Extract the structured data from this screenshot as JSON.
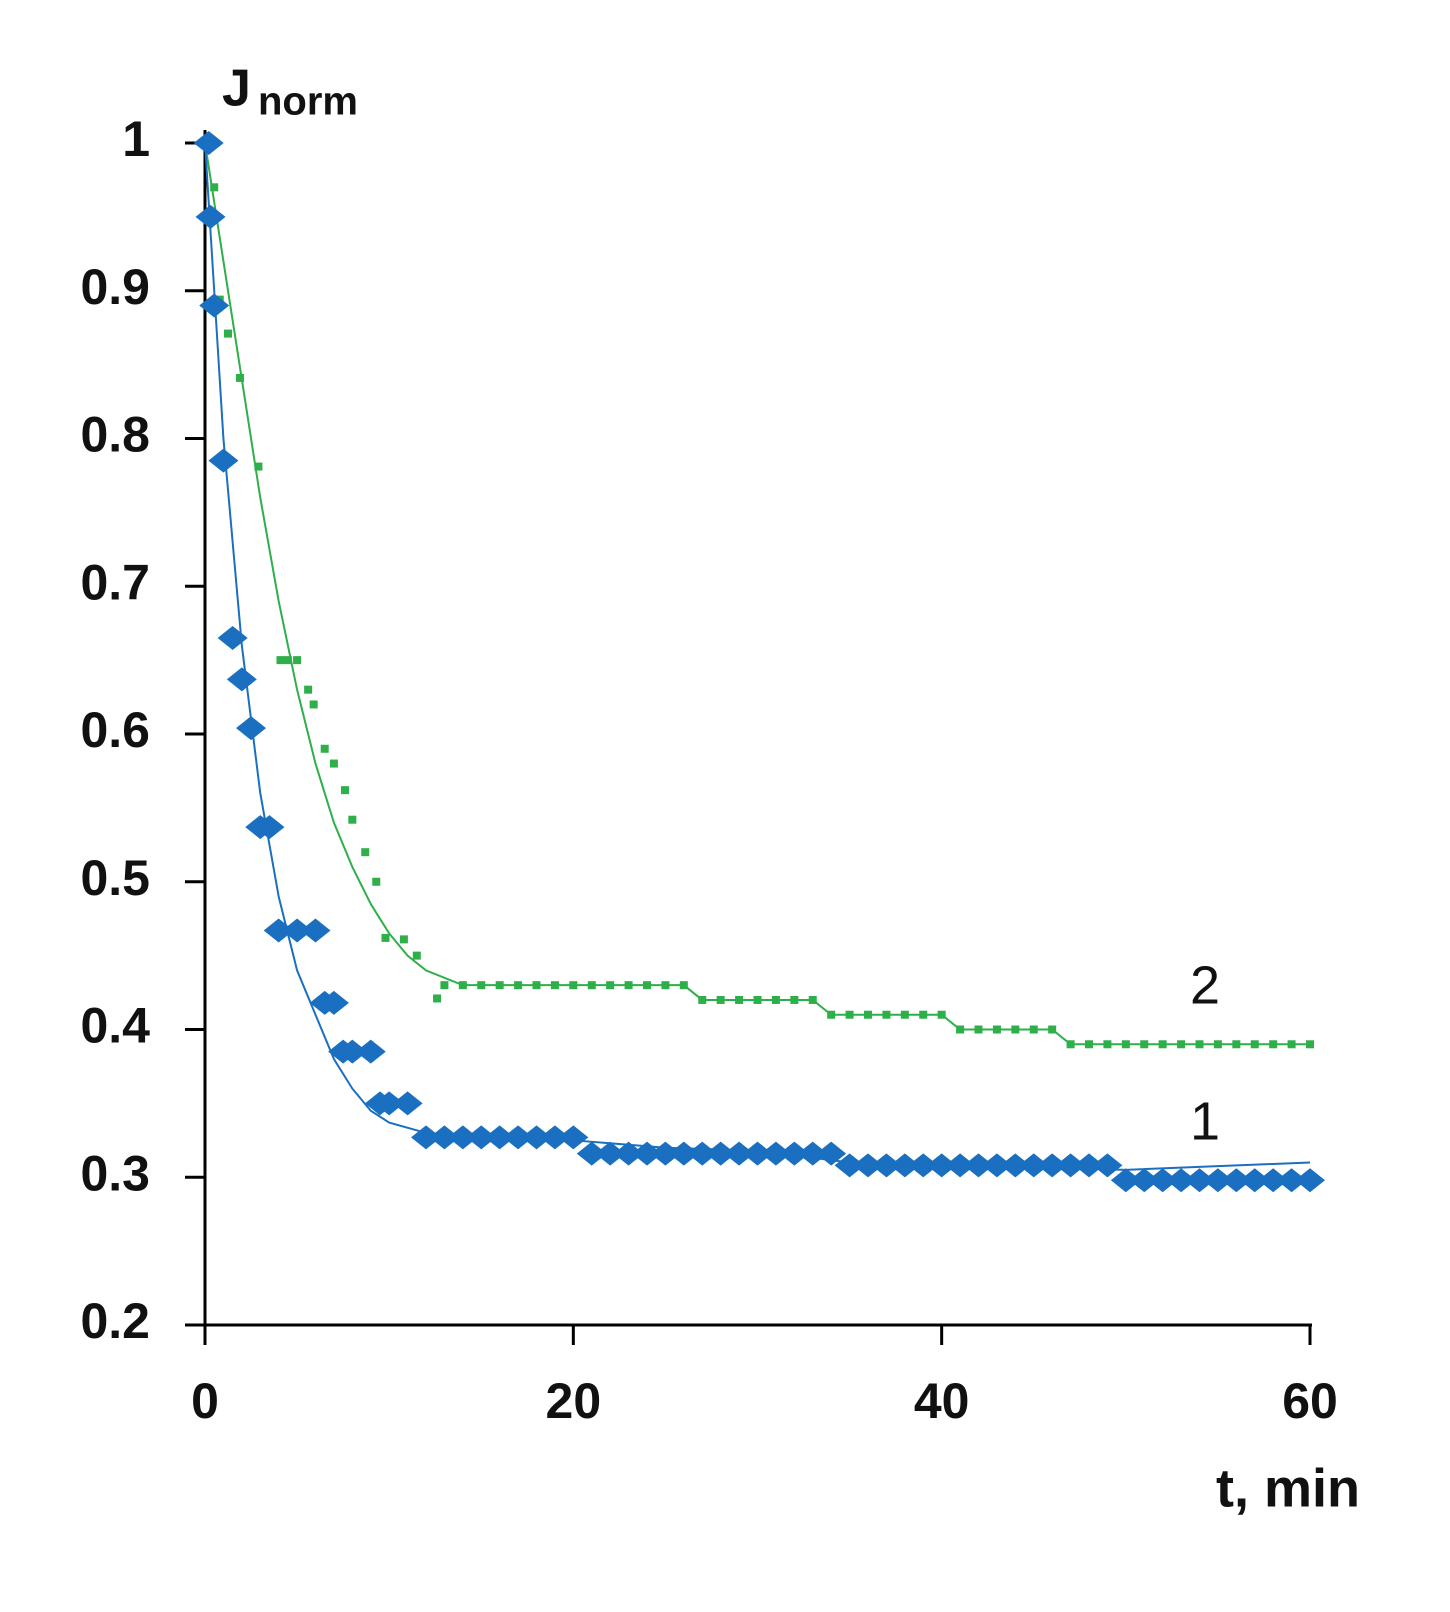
{
  "chart_data": {
    "type": "scatter",
    "y_label": "J",
    "y_label_sub": "norm",
    "x_label": "t, min",
    "xlim": [
      0,
      60
    ],
    "ylim": [
      0.2,
      1
    ],
    "xticks": [
      0,
      20,
      40,
      60
    ],
    "yticks": [
      0.2,
      0.3,
      0.4,
      0.5,
      0.6,
      0.7,
      0.8,
      0.9,
      1
    ],
    "series": [
      {
        "name": "2",
        "color": "#2eaf4a",
        "marker": "square",
        "x": [
          0.3,
          0.5,
          0.8,
          1.25,
          1.9,
          2.9,
          4.1,
          4.5,
          5,
          5.6,
          5.9,
          6.5,
          7,
          7.6,
          8,
          8.7,
          9.3,
          9.8,
          10.8,
          11.5,
          12.6,
          13,
          14,
          15,
          16,
          17,
          18,
          19,
          20,
          21,
          22,
          23,
          24,
          25,
          26,
          27,
          28,
          29,
          30,
          31,
          32,
          33,
          34,
          35,
          36,
          37,
          38,
          39,
          40,
          41,
          42,
          43,
          44,
          45,
          46,
          47,
          48,
          49,
          50,
          51,
          52,
          53,
          54,
          55,
          56,
          57,
          58,
          59,
          60
        ],
        "values": [
          1,
          0.97,
          0.894,
          0.871,
          0.841,
          0.781,
          0.65,
          0.65,
          0.65,
          0.63,
          0.62,
          0.59,
          0.58,
          0.562,
          0.542,
          0.52,
          0.5,
          0.462,
          0.461,
          0.45,
          0.421,
          0.43,
          0.43,
          0.43,
          0.43,
          0.43,
          0.43,
          0.43,
          0.43,
          0.43,
          0.43,
          0.43,
          0.43,
          0.43,
          0.43,
          0.42,
          0.42,
          0.42,
          0.42,
          0.42,
          0.42,
          0.42,
          0.41,
          0.41,
          0.41,
          0.41,
          0.41,
          0.41,
          0.41,
          0.4,
          0.4,
          0.4,
          0.4,
          0.4,
          0.4,
          0.39,
          0.39,
          0.39,
          0.39,
          0.39,
          0.39,
          0.39,
          0.39,
          0.39,
          0.39,
          0.39,
          0.39,
          0.39,
          0.39
        ],
        "fit_x": [
          0,
          1,
          2,
          3,
          4,
          5,
          6,
          7,
          8,
          9,
          10,
          11,
          12,
          14,
          20,
          26,
          27,
          33,
          34,
          40,
          41,
          46,
          47,
          60
        ],
        "fit": [
          1,
          0.92,
          0.84,
          0.76,
          0.69,
          0.63,
          0.58,
          0.54,
          0.51,
          0.485,
          0.465,
          0.45,
          0.44,
          0.43,
          0.43,
          0.43,
          0.42,
          0.42,
          0.41,
          0.41,
          0.4,
          0.4,
          0.39,
          0.39
        ]
      },
      {
        "name": "1",
        "color": "#1a6fc0",
        "marker": "diamond",
        "x": [
          0.2,
          0.3,
          0.5,
          1,
          1.5,
          2,
          2.5,
          3,
          3.5,
          4,
          5,
          6,
          6.5,
          7,
          7.5,
          8,
          9,
          9.5,
          10,
          11,
          12,
          13,
          14,
          15,
          16,
          17,
          18,
          19,
          20,
          21,
          22,
          23,
          24,
          25,
          26,
          27,
          28,
          29,
          30,
          31,
          32,
          33,
          34,
          35,
          36,
          37,
          38,
          39,
          40,
          41,
          42,
          43,
          44,
          45,
          46,
          47,
          48,
          49,
          50,
          51,
          52,
          53,
          54,
          55,
          56,
          57,
          58,
          59,
          60
        ],
        "values": [
          1,
          0.95,
          0.89,
          0.785,
          0.665,
          0.637,
          0.604,
          0.537,
          0.537,
          0.467,
          0.467,
          0.467,
          0.418,
          0.418,
          0.385,
          0.385,
          0.385,
          0.35,
          0.35,
          0.35,
          0.327,
          0.327,
          0.327,
          0.327,
          0.327,
          0.327,
          0.327,
          0.327,
          0.327,
          0.316,
          0.316,
          0.316,
          0.316,
          0.316,
          0.316,
          0.316,
          0.316,
          0.316,
          0.316,
          0.316,
          0.316,
          0.316,
          0.316,
          0.308,
          0.308,
          0.308,
          0.308,
          0.308,
          0.308,
          0.308,
          0.308,
          0.308,
          0.308,
          0.308,
          0.308,
          0.308,
          0.308,
          0.308,
          0.298,
          0.298,
          0.298,
          0.298,
          0.298,
          0.298,
          0.298,
          0.298,
          0.298,
          0.298,
          0.298
        ],
        "fit_x": [
          0,
          1,
          2,
          3,
          4,
          5,
          6,
          7,
          8,
          9,
          10,
          12,
          15,
          20,
          25,
          30,
          35,
          50,
          60
        ],
        "fit": [
          1,
          0.8,
          0.66,
          0.56,
          0.49,
          0.44,
          0.41,
          0.38,
          0.36,
          0.345,
          0.337,
          0.33,
          0.327,
          0.325,
          0.32,
          0.318,
          0.31,
          0.305,
          0.31
        ]
      }
    ]
  }
}
